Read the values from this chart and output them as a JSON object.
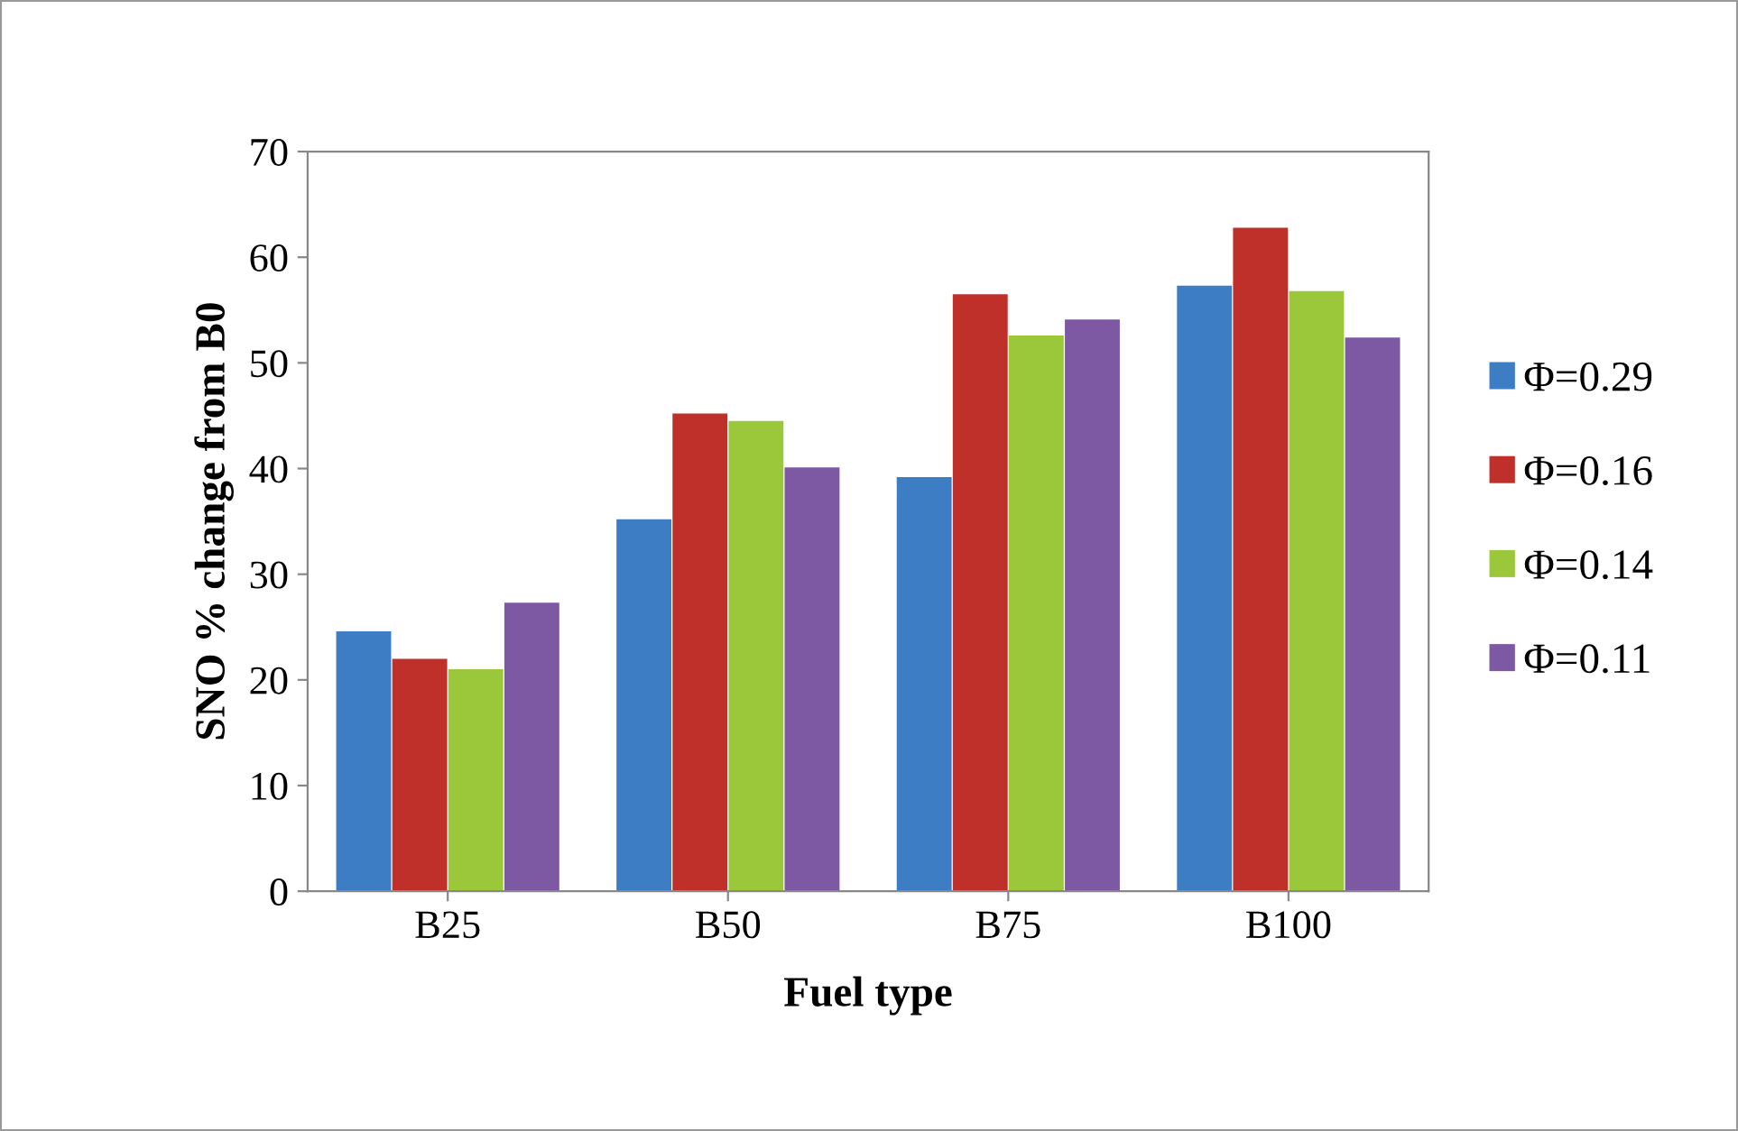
{
  "chart_data": {
    "type": "bar",
    "xlabel": "Fuel type",
    "ylabel": "SNO % change from B0",
    "categories": [
      "B25",
      "B50",
      "B75",
      "B100"
    ],
    "series": [
      {
        "name": "Φ=0.29",
        "color": "#3c7dc4",
        "values": [
          24.6,
          35.2,
          39.2,
          57.3
        ]
      },
      {
        "name": "Φ=0.16",
        "color": "#c0302b",
        "values": [
          22.0,
          45.2,
          56.5,
          62.8
        ]
      },
      {
        "name": "Φ=0.14",
        "color": "#9bc83a",
        "values": [
          21.0,
          44.5,
          52.6,
          56.8
        ]
      },
      {
        "name": "Φ=0.11",
        "color": "#7d58a3",
        "values": [
          27.3,
          40.1,
          54.1,
          52.4
        ]
      }
    ],
    "ylim": [
      0,
      70
    ],
    "yticks": [
      0,
      10,
      20,
      30,
      40,
      50,
      60,
      70
    ],
    "grid": false,
    "legend": "right"
  }
}
